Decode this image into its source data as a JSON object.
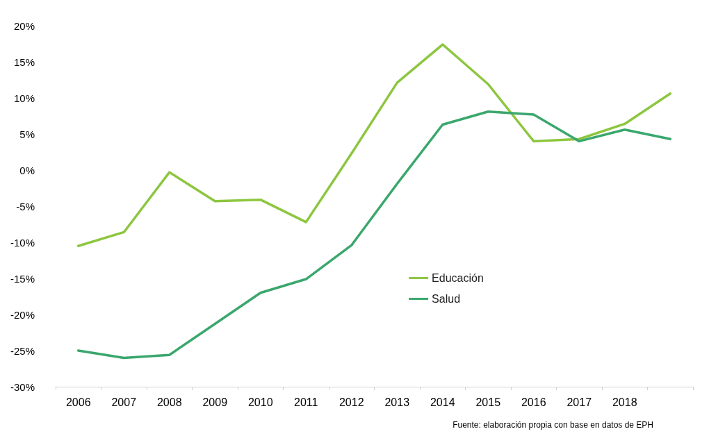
{
  "chart_data": {
    "type": "line",
    "categories": [
      "2006",
      "2007",
      "2008",
      "2009",
      "2010",
      "2011",
      "2012",
      "2013",
      "2014",
      "2015",
      "2016",
      "2017",
      "2018",
      null
    ],
    "series": [
      {
        "name": "Educación",
        "color": "#8dc63f",
        "values": [
          -10.5,
          -8.6,
          -0.3,
          -4.3,
          -4.1,
          -7.2,
          2.3,
          12.1,
          17.4,
          11.9,
          4.0,
          4.3,
          6.4,
          10.6
        ]
      },
      {
        "name": "Salud",
        "color": "#3aa76d",
        "values": [
          -25.0,
          -26.0,
          -25.6,
          -21.3,
          -17.0,
          -15.1,
          -10.4,
          -1.9,
          6.3,
          8.1,
          7.7,
          4.0,
          5.6,
          4.3
        ]
      }
    ],
    "ylim": [
      -30,
      20
    ],
    "yticks": [
      {
        "value": -30,
        "label": "-30%"
      },
      {
        "value": -25,
        "label": "-25%"
      },
      {
        "value": -20,
        "label": "-20%"
      },
      {
        "value": -15,
        "label": "-15%"
      },
      {
        "value": -10,
        "label": "-10%"
      },
      {
        "value": -5,
        "label": "-5%"
      },
      {
        "value": 0,
        "label": "0%"
      },
      {
        "value": 5,
        "label": "5%"
      },
      {
        "value": 10,
        "label": "10%"
      },
      {
        "value": 15,
        "label": "15%"
      },
      {
        "value": 20,
        "label": "20%"
      }
    ],
    "grid": false,
    "legend": "center",
    "marker": "none",
    "line_style": "solid",
    "annotations": [
      "Fuente: elaboración propia con base en datos de EPH"
    ]
  }
}
